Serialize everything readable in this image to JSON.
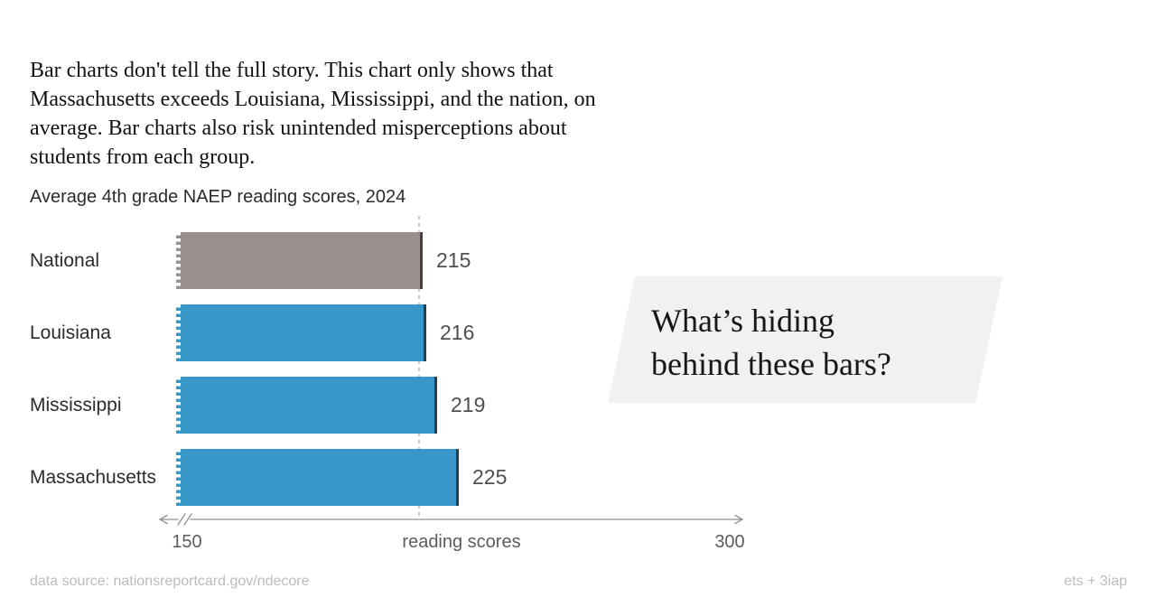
{
  "intro": {
    "text": "Bar charts don't tell the full story. This chart only shows that\nMassachusetts exceeds Louisiana, Mississippi, and the nation, on\naverage. Bar charts also risk unintended misperceptions about\nstudents from each group."
  },
  "chart_data": {
    "type": "bar",
    "orientation": "horizontal",
    "title": "Average 4th grade NAEP reading scores, 2024",
    "categories": [
      "National",
      "Louisiana",
      "Mississippi",
      "Massachusetts"
    ],
    "values": [
      215,
      216,
      219,
      225
    ],
    "bar_colors": [
      "#99908d",
      "#3797c8",
      "#3797c8",
      "#3797c8"
    ],
    "bar_edge_colors": [
      "#46413f",
      "#2b3f4b",
      "#2b3f4b",
      "#2b3f4b"
    ],
    "xlabel": "reading scores",
    "xlim": [
      150,
      300
    ],
    "tick_labels": [
      "150",
      "300"
    ],
    "axis_break": true,
    "reference_line": {
      "value": 215,
      "style": "dashed",
      "color": "#c9c9c9"
    },
    "grid": false,
    "legend": "none"
  },
  "callout": {
    "text": "What’s hiding\nbehind these bars?",
    "background": "#f1f1f2"
  },
  "footer": {
    "source": "data source: nationsreportcard.gov/ndecore",
    "credit": "ets + 3iap"
  },
  "colors": {
    "accent_blue": "#3797c8",
    "national_gray": "#99908d",
    "axis": "#8f8f8f",
    "text_dark": "#2b2b2b",
    "value_label": "#4f4f4f",
    "footer_text": "#bcbcbc"
  }
}
